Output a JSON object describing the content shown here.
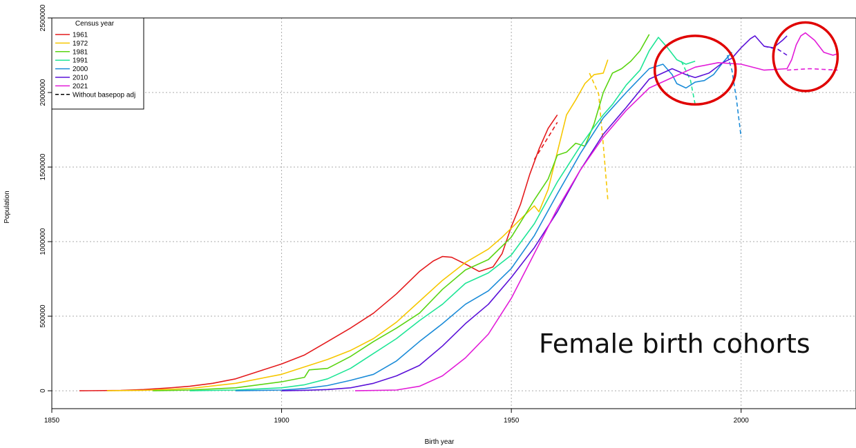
{
  "chart_data": {
    "type": "line",
    "title": "",
    "xlabel": "Birth year",
    "ylabel": "Population",
    "xlim": [
      1850,
      2025
    ],
    "ylim": [
      -120000,
      2500000
    ],
    "xticks": [
      1850,
      1900,
      1950,
      2000
    ],
    "yticks": [
      0,
      500000,
      1000000,
      1500000,
      2000000,
      2500000
    ],
    "ytick_labels": [
      "0",
      "500000",
      "1000000",
      "1500000",
      "2000000",
      "2500000"
    ],
    "grid": true,
    "legend": {
      "title": "Census year",
      "placement": "top-left",
      "entries": [
        {
          "label": "1961",
          "color": "#e41a1c",
          "style": "solid"
        },
        {
          "label": "1972",
          "color": "#f6c700",
          "style": "solid"
        },
        {
          "label": "1981",
          "color": "#5ad411",
          "style": "solid"
        },
        {
          "label": "1991",
          "color": "#1ee596",
          "style": "solid"
        },
        {
          "label": "2000",
          "color": "#1a8bd8",
          "style": "solid"
        },
        {
          "label": "2010",
          "color": "#5a10d8",
          "style": "solid"
        },
        {
          "label": "2021",
          "color": "#e21ad8",
          "style": "solid"
        },
        {
          "label": "Without basepop adj",
          "color": "#000000",
          "style": "dashed"
        }
      ]
    },
    "series": [
      {
        "name": "1961",
        "color": "#e41a1c",
        "x": [
          1856,
          1865,
          1870,
          1875,
          1880,
          1885,
          1890,
          1895,
          1900,
          1905,
          1910,
          1915,
          1920,
          1925,
          1930,
          1933,
          1935,
          1937,
          1940,
          1943,
          1946,
          1948,
          1950,
          1952,
          1954,
          1956,
          1958,
          1960
        ],
        "y": [
          0,
          2000,
          8000,
          18000,
          30000,
          50000,
          80000,
          130000,
          180000,
          240000,
          330000,
          420000,
          520000,
          650000,
          800000,
          870000,
          900000,
          895000,
          850000,
          800000,
          830000,
          920000,
          1100000,
          1250000,
          1450000,
          1620000,
          1760000,
          1850000
        ]
      },
      {
        "name": "1972",
        "color": "#f6c700",
        "x": [
          1862,
          1870,
          1880,
          1890,
          1895,
          1900,
          1905,
          1910,
          1915,
          1920,
          1925,
          1930,
          1935,
          1940,
          1945,
          1948,
          1950,
          1952,
          1954,
          1955,
          1956,
          1958,
          1960,
          1962,
          1964,
          1966,
          1968,
          1970,
          1971
        ],
        "y": [
          0,
          3000,
          15000,
          50000,
          80000,
          110000,
          160000,
          210000,
          270000,
          350000,
          460000,
          600000,
          740000,
          860000,
          950000,
          1030000,
          1090000,
          1150000,
          1210000,
          1240000,
          1200000,
          1350000,
          1600000,
          1850000,
          1950000,
          2060000,
          2120000,
          2130000,
          2220000
        ]
      },
      {
        "name": "1981",
        "color": "#5ad411",
        "x": [
          1872,
          1880,
          1890,
          1900,
          1905,
          1906,
          1910,
          1915,
          1920,
          1925,
          1930,
          1935,
          1940,
          1945,
          1950,
          1955,
          1958,
          1960,
          1962,
          1964,
          1966,
          1968,
          1970,
          1972,
          1974,
          1976,
          1978,
          1980
        ],
        "y": [
          0,
          5000,
          20000,
          60000,
          90000,
          140000,
          150000,
          230000,
          330000,
          420000,
          520000,
          680000,
          810000,
          880000,
          1030000,
          1280000,
          1420000,
          1580000,
          1600000,
          1660000,
          1640000,
          1790000,
          2000000,
          2130000,
          2160000,
          2210000,
          2280000,
          2390000
        ]
      },
      {
        "name": "1991",
        "color": "#1ee596",
        "x": [
          1880,
          1890,
          1900,
          1905,
          1910,
          1915,
          1920,
          1925,
          1930,
          1935,
          1940,
          1945,
          1950,
          1955,
          1960,
          1965,
          1968,
          1970,
          1972,
          1975,
          1978,
          1980,
          1982,
          1984,
          1986,
          1988,
          1990
        ],
        "y": [
          0,
          5000,
          20000,
          40000,
          80000,
          150000,
          250000,
          350000,
          470000,
          580000,
          720000,
          790000,
          910000,
          1120000,
          1400000,
          1640000,
          1770000,
          1850000,
          1920000,
          2050000,
          2150000,
          2280000,
          2370000,
          2300000,
          2220000,
          2190000,
          2210000
        ]
      },
      {
        "name": "2000",
        "color": "#1a8bd8",
        "x": [
          1890,
          1900,
          1905,
          1910,
          1915,
          1920,
          1925,
          1930,
          1935,
          1940,
          1945,
          1950,
          1955,
          1960,
          1965,
          1970,
          1975,
          1980,
          1983,
          1985,
          1986,
          1988,
          1990,
          1992,
          1994,
          1996,
          1998
        ],
        "y": [
          0,
          5000,
          15000,
          35000,
          70000,
          110000,
          200000,
          330000,
          450000,
          580000,
          670000,
          820000,
          1040000,
          1320000,
          1590000,
          1830000,
          2000000,
          2160000,
          2190000,
          2120000,
          2060000,
          2030000,
          2070000,
          2080000,
          2120000,
          2200000,
          2270000
        ]
      },
      {
        "name": "2010",
        "color": "#5a10d8",
        "x": [
          1900,
          1905,
          1910,
          1915,
          1920,
          1925,
          1930,
          1935,
          1940,
          1945,
          1950,
          1955,
          1960,
          1965,
          1970,
          1975,
          1980,
          1985,
          1988,
          1990,
          1993,
          1996,
          1998,
          2000,
          2002,
          2003,
          2005,
          2007,
          2009,
          2010
        ],
        "y": [
          0,
          3000,
          8000,
          20000,
          50000,
          100000,
          170000,
          300000,
          450000,
          580000,
          760000,
          960000,
          1200000,
          1480000,
          1720000,
          1900000,
          2090000,
          2160000,
          2120000,
          2100000,
          2130000,
          2200000,
          2230000,
          2300000,
          2360000,
          2380000,
          2310000,
          2300000,
          2350000,
          2380000
        ]
      },
      {
        "name": "2021",
        "color": "#e21ad8",
        "x": [
          1916,
          1925,
          1930,
          1935,
          1940,
          1945,
          1950,
          1955,
          1960,
          1965,
          1970,
          1975,
          1980,
          1985,
          1990,
          1995,
          2000,
          2005,
          2010,
          2011,
          2012,
          2013,
          2014,
          2016,
          2018,
          2020,
          2021
        ],
        "y": [
          0,
          5000,
          30000,
          100000,
          220000,
          380000,
          620000,
          920000,
          1220000,
          1480000,
          1700000,
          1880000,
          2030000,
          2100000,
          2170000,
          2200000,
          2190000,
          2150000,
          2160000,
          2220000,
          2320000,
          2380000,
          2400000,
          2350000,
          2270000,
          2250000,
          2260000
        ]
      }
    ],
    "dashed_series": [
      {
        "color": "#e41a1c",
        "x": [
          1955,
          1958,
          1960
        ],
        "y": [
          1550000,
          1700000,
          1800000
        ]
      },
      {
        "color": "#f6c700",
        "x": [
          1967,
          1969,
          1970,
          1971
        ],
        "y": [
          2130000,
          1990000,
          1650000,
          1280000
        ]
      },
      {
        "color": "#1ee596",
        "x": [
          1987,
          1989,
          1990
        ],
        "y": [
          2210000,
          2080000,
          1920000
        ]
      },
      {
        "color": "#1a8bd8",
        "x": [
          1997,
          1998,
          1999,
          2000
        ],
        "y": [
          2250000,
          2150000,
          1950000,
          1700000
        ]
      },
      {
        "color": "#5a10d8",
        "x": [
          2005,
          2008,
          2010
        ],
        "y": [
          2310000,
          2290000,
          2250000
        ]
      },
      {
        "color": "#e21ad8",
        "x": [
          2010,
          2015,
          2021
        ],
        "y": [
          2150000,
          2160000,
          2150000
        ]
      }
    ],
    "annotations": [
      {
        "type": "text",
        "text": "Female birth cohorts"
      },
      {
        "type": "circle",
        "color": "#e00000",
        "cx": 1990,
        "cy": 2150000,
        "rx": 8.8,
        "ry": 230000
      },
      {
        "type": "circle",
        "color": "#e00000",
        "cx": 2014,
        "cy": 2240000,
        "rx": 7,
        "ry": 230000
      }
    ]
  }
}
